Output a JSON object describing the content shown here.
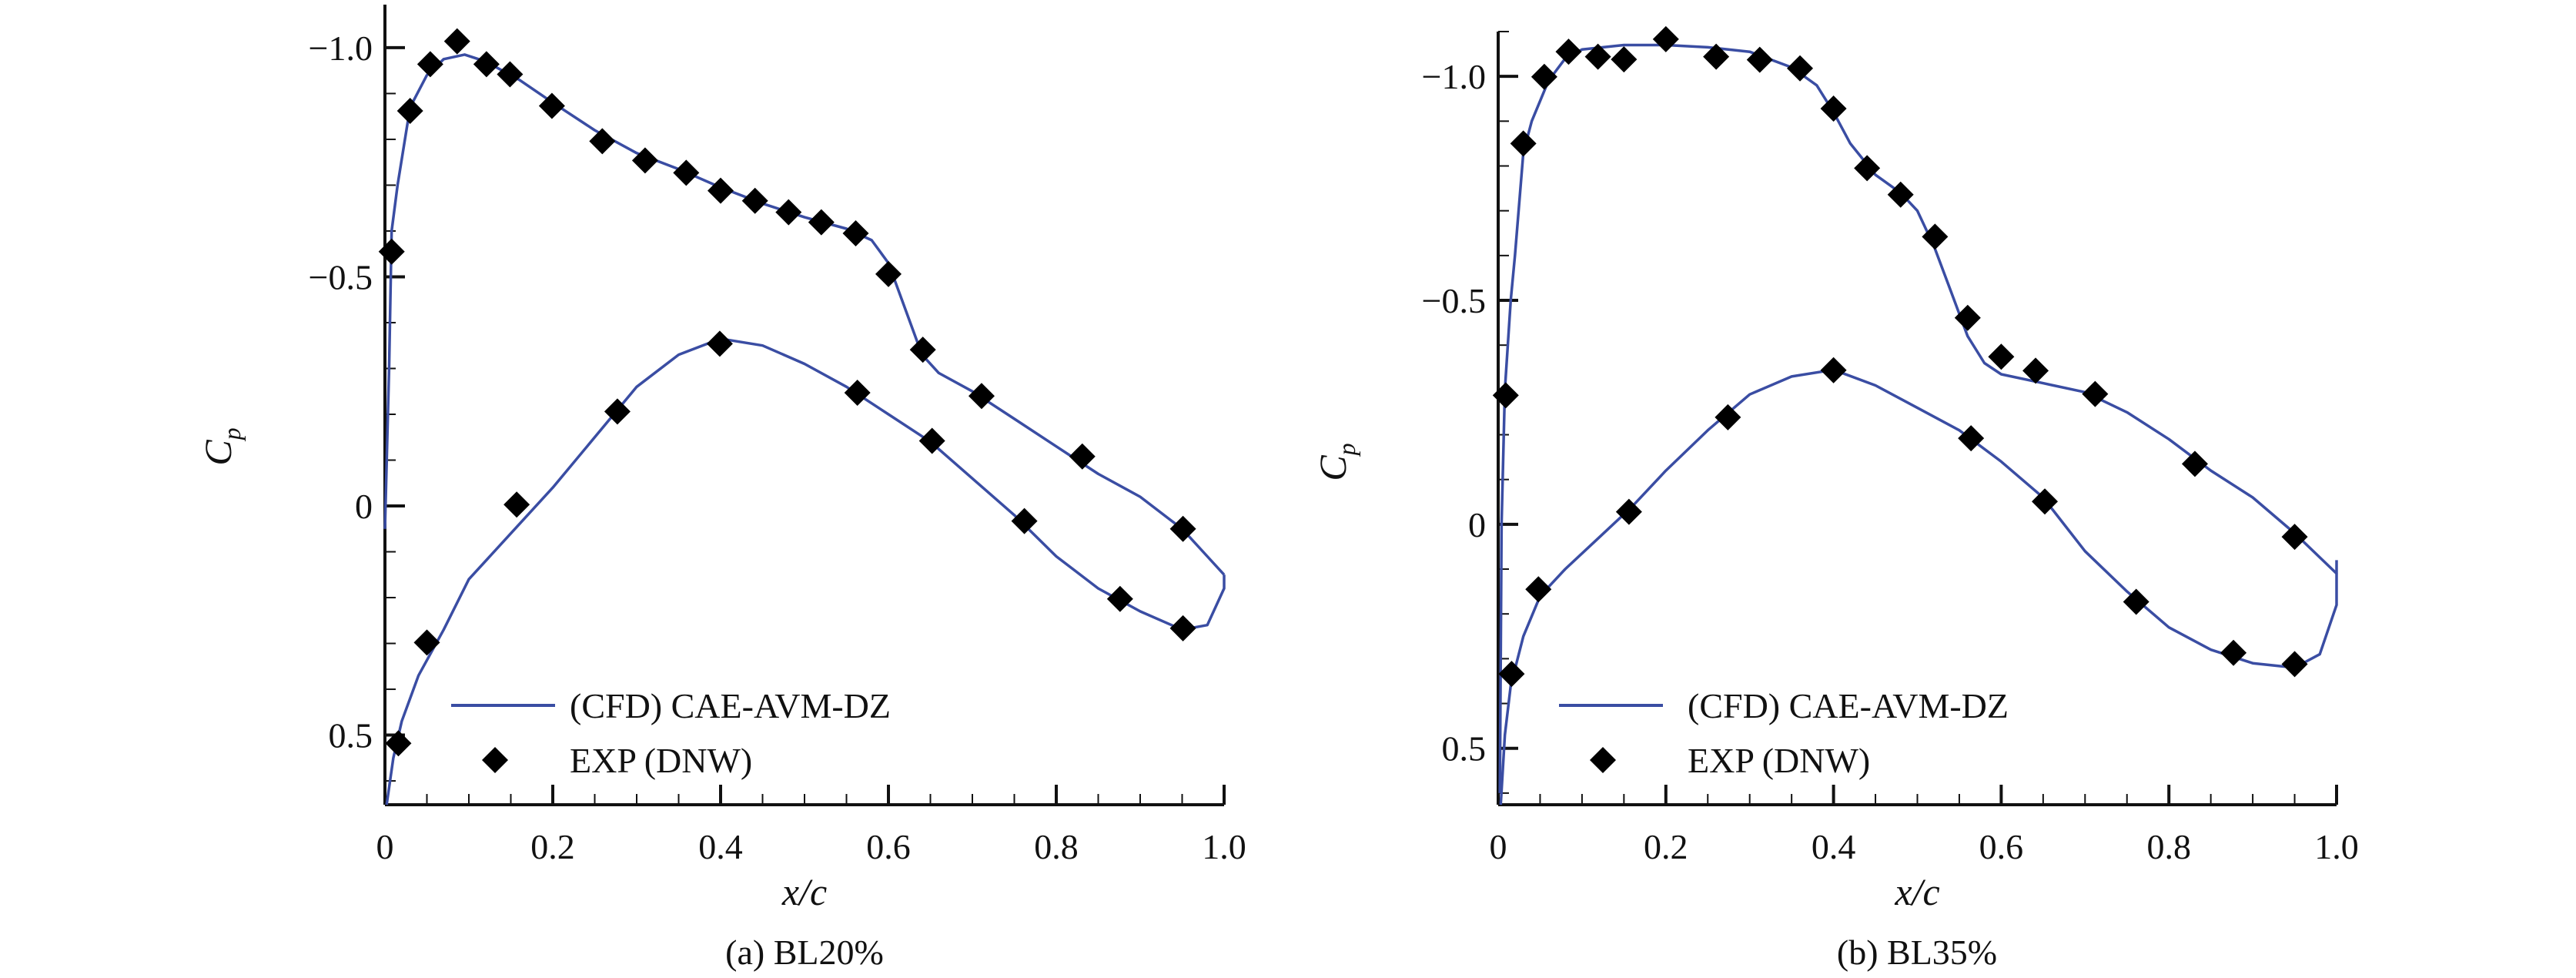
{
  "colors": {
    "cfd": "#3a4da3",
    "exp": "#000000",
    "axis": "#111111"
  },
  "chart_data": [
    {
      "type": "line",
      "caption": "(a) BL20%",
      "xlabel": "x/c",
      "ylabel": "C",
      "ylabel_sub": "p",
      "xlim": [
        0,
        1.0
      ],
      "ylim": [
        -1.094,
        0.652
      ],
      "y_inverted": true,
      "xticks": [
        0,
        0.2,
        0.4,
        0.6,
        0.8,
        1.0
      ],
      "xtick_labels": [
        "0",
        "0.2",
        "0.4",
        "0.6",
        "0.8",
        "1.0"
      ],
      "yticks": [
        -1.0,
        -0.5,
        0,
        0.5
      ],
      "ytick_labels": [
        "−1.0",
        "−0.5",
        "0",
        "0.5"
      ],
      "grid": false,
      "legend_placement": "bottom-left",
      "series": [
        {
          "name": "(CFD) CAE-AVM-DZ",
          "kind": "line",
          "upper": [
            [
              0,
              0.05
            ],
            [
              0.005,
              -0.3
            ],
            [
              0.008,
              -0.6
            ],
            [
              0.015,
              -0.7
            ],
            [
              0.03,
              -0.87
            ],
            [
              0.05,
              -0.94
            ],
            [
              0.07,
              -0.975
            ],
            [
              0.095,
              -0.985
            ],
            [
              0.12,
              -0.97
            ],
            [
              0.16,
              -0.93
            ],
            [
              0.2,
              -0.88
            ],
            [
              0.25,
              -0.82
            ],
            [
              0.3,
              -0.77
            ],
            [
              0.35,
              -0.735
            ],
            [
              0.4,
              -0.695
            ],
            [
              0.45,
              -0.66
            ],
            [
              0.5,
              -0.63
            ],
            [
              0.55,
              -0.605
            ],
            [
              0.58,
              -0.58
            ],
            [
              0.6,
              -0.53
            ],
            [
              0.62,
              -0.43
            ],
            [
              0.64,
              -0.33
            ],
            [
              0.66,
              -0.29
            ],
            [
              0.7,
              -0.25
            ],
            [
              0.75,
              -0.19
            ],
            [
              0.8,
              -0.13
            ],
            [
              0.85,
              -0.07
            ],
            [
              0.9,
              -0.02
            ],
            [
              0.95,
              0.05
            ],
            [
              0.98,
              0.11
            ],
            [
              1.0,
              0.15
            ]
          ],
          "lower": [
            [
              0.002,
              0.652
            ],
            [
              0.01,
              0.55
            ],
            [
              0.02,
              0.47
            ],
            [
              0.04,
              0.37
            ],
            [
              0.07,
              0.27
            ],
            [
              0.1,
              0.16
            ],
            [
              0.15,
              0.06
            ],
            [
              0.2,
              -0.04
            ],
            [
              0.25,
              -0.15
            ],
            [
              0.3,
              -0.26
            ],
            [
              0.35,
              -0.33
            ],
            [
              0.4,
              -0.365
            ],
            [
              0.45,
              -0.35
            ],
            [
              0.5,
              -0.31
            ],
            [
              0.55,
              -0.26
            ],
            [
              0.6,
              -0.2
            ],
            [
              0.65,
              -0.14
            ],
            [
              0.7,
              -0.06
            ],
            [
              0.75,
              0.02
            ],
            [
              0.8,
              0.11
            ],
            [
              0.85,
              0.18
            ],
            [
              0.9,
              0.23
            ],
            [
              0.95,
              0.27
            ],
            [
              0.98,
              0.26
            ],
            [
              1.0,
              0.18
            ],
            [
              1.0,
              0.15
            ]
          ]
        },
        {
          "name": "EXP (DNW)",
          "kind": "scatter",
          "points": [
            [
              0.008,
              -0.555
            ],
            [
              0.03,
              -0.862
            ],
            [
              0.054,
              -0.964
            ],
            [
              0.086,
              -1.014
            ],
            [
              0.121,
              -0.964
            ],
            [
              0.149,
              -0.942
            ],
            [
              0.199,
              -0.873
            ],
            [
              0.259,
              -0.796
            ],
            [
              0.31,
              -0.754
            ],
            [
              0.359,
              -0.727
            ],
            [
              0.4,
              -0.688
            ],
            [
              0.441,
              -0.666
            ],
            [
              0.481,
              -0.641
            ],
            [
              0.52,
              -0.619
            ],
            [
              0.561,
              -0.595
            ],
            [
              0.6,
              -0.506
            ],
            [
              0.641,
              -0.341
            ],
            [
              0.711,
              -0.24
            ],
            [
              0.831,
              -0.108
            ],
            [
              0.951,
              0.05
            ],
            [
              0.016,
              0.518
            ],
            [
              0.05,
              0.298
            ],
            [
              0.157,
              -0.003
            ],
            [
              0.277,
              -0.206
            ],
            [
              0.399,
              -0.354
            ],
            [
              0.563,
              -0.247
            ],
            [
              0.652,
              -0.142
            ],
            [
              0.762,
              0.033
            ],
            [
              0.876,
              0.203
            ],
            [
              0.951,
              0.267
            ]
          ]
        }
      ]
    },
    {
      "type": "line",
      "caption": "(b) BL35%",
      "xlabel": "x/c",
      "ylabel": "C",
      "ylabel_sub": "p",
      "xlim": [
        0,
        1.0
      ],
      "ylim": [
        -1.1,
        0.626
      ],
      "y_inverted": true,
      "xticks": [
        0,
        0.2,
        0.4,
        0.6,
        0.8,
        1.0
      ],
      "xtick_labels": [
        "0",
        "0.2",
        "0.4",
        "0.6",
        "0.8",
        "1.0"
      ],
      "yticks": [
        -1.0,
        -0.5,
        0,
        0.5
      ],
      "ytick_labels": [
        "−1.0",
        "−0.5",
        "0",
        "0.5"
      ],
      "grid": false,
      "legend_placement": "bottom-left",
      "series": [
        {
          "name": "(CFD) CAE-AVM-DZ",
          "kind": "line",
          "upper": [
            [
              0.002,
              0.6
            ],
            [
              0.004,
              0.0
            ],
            [
              0.008,
              -0.3
            ],
            [
              0.015,
              -0.5
            ],
            [
              0.02,
              -0.6
            ],
            [
              0.03,
              -0.83
            ],
            [
              0.04,
              -0.9
            ],
            [
              0.06,
              -0.99
            ],
            [
              0.08,
              -1.04
            ],
            [
              0.1,
              -1.06
            ],
            [
              0.15,
              -1.07
            ],
            [
              0.2,
              -1.07
            ],
            [
              0.25,
              -1.065
            ],
            [
              0.3,
              -1.055
            ],
            [
              0.35,
              -1.02
            ],
            [
              0.38,
              -0.98
            ],
            [
              0.4,
              -0.92
            ],
            [
              0.42,
              -0.85
            ],
            [
              0.45,
              -0.78
            ],
            [
              0.48,
              -0.74
            ],
            [
              0.5,
              -0.7
            ],
            [
              0.52,
              -0.62
            ],
            [
              0.54,
              -0.52
            ],
            [
              0.56,
              -0.42
            ],
            [
              0.58,
              -0.36
            ],
            [
              0.6,
              -0.335
            ],
            [
              0.65,
              -0.315
            ],
            [
              0.7,
              -0.295
            ],
            [
              0.75,
              -0.25
            ],
            [
              0.8,
              -0.19
            ],
            [
              0.85,
              -0.12
            ],
            [
              0.9,
              -0.06
            ],
            [
              0.95,
              0.02
            ],
            [
              1.0,
              0.11
            ],
            [
              1.0,
              0.08
            ]
          ],
          "lower": [
            [
              0.003,
              0.626
            ],
            [
              0.008,
              0.47
            ],
            [
              0.015,
              0.36
            ],
            [
              0.03,
              0.25
            ],
            [
              0.05,
              0.16
            ],
            [
              0.08,
              0.1
            ],
            [
              0.12,
              0.03
            ],
            [
              0.16,
              -0.04
            ],
            [
              0.2,
              -0.12
            ],
            [
              0.25,
              -0.21
            ],
            [
              0.3,
              -0.29
            ],
            [
              0.35,
              -0.33
            ],
            [
              0.4,
              -0.345
            ],
            [
              0.45,
              -0.31
            ],
            [
              0.5,
              -0.26
            ],
            [
              0.55,
              -0.21
            ],
            [
              0.6,
              -0.14
            ],
            [
              0.65,
              -0.06
            ],
            [
              0.7,
              0.06
            ],
            [
              0.75,
              0.15
            ],
            [
              0.8,
              0.23
            ],
            [
              0.85,
              0.28
            ],
            [
              0.9,
              0.31
            ],
            [
              0.95,
              0.32
            ],
            [
              0.98,
              0.29
            ],
            [
              1.0,
              0.18
            ],
            [
              1.0,
              0.11
            ]
          ]
        },
        {
          "name": "EXP (DNW)",
          "kind": "scatter",
          "points": [
            [
              0.009,
              -0.288
            ],
            [
              0.03,
              -0.85
            ],
            [
              0.055,
              -0.999
            ],
            [
              0.084,
              -1.055
            ],
            [
              0.119,
              -1.044
            ],
            [
              0.15,
              -1.038
            ],
            [
              0.2,
              -1.083
            ],
            [
              0.26,
              -1.044
            ],
            [
              0.312,
              -1.037
            ],
            [
              0.36,
              -1.018
            ],
            [
              0.4,
              -0.928
            ],
            [
              0.44,
              -0.795
            ],
            [
              0.48,
              -0.736
            ],
            [
              0.521,
              -0.642
            ],
            [
              0.56,
              -0.461
            ],
            [
              0.6,
              -0.374
            ],
            [
              0.641,
              -0.343
            ],
            [
              0.712,
              -0.291
            ],
            [
              0.831,
              -0.135
            ],
            [
              0.95,
              0.028
            ],
            [
              0.016,
              0.334
            ],
            [
              0.048,
              0.145
            ],
            [
              0.156,
              -0.028
            ],
            [
              0.274,
              -0.239
            ],
            [
              0.4,
              -0.344
            ],
            [
              0.564,
              -0.192
            ],
            [
              0.652,
              -0.051
            ],
            [
              0.761,
              0.173
            ],
            [
              0.877,
              0.287
            ],
            [
              0.95,
              0.312
            ]
          ]
        }
      ]
    }
  ]
}
